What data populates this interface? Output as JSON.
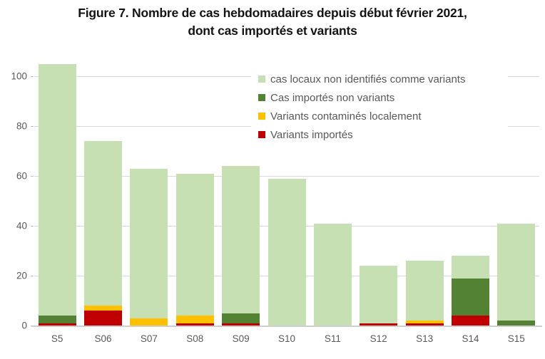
{
  "title": {
    "line1": "Figure 7. Nombre de cas hebdomadaires depuis début février 2021,",
    "line2": "dont cas importés et variants"
  },
  "chart_data": {
    "type": "bar",
    "stacked": true,
    "title": "Figure 7. Nombre de cas hebdomadaires depuis début février 2021, dont cas importés et variants",
    "categories": [
      "S5",
      "S06",
      "S07",
      "S08",
      "S09",
      "S10",
      "S11",
      "S12",
      "S13",
      "S14",
      "S15"
    ],
    "series": [
      {
        "name": "Variants importés",
        "color": "#c00000",
        "values": [
          1,
          6,
          0,
          1,
          1,
          0,
          0,
          1,
          1,
          4,
          0
        ]
      },
      {
        "name": "Variants contaminés localement",
        "color": "#ffc000",
        "values": [
          0,
          2,
          3,
          3,
          0,
          0,
          0,
          0,
          1,
          0,
          0
        ]
      },
      {
        "name": "Cas importés non variants",
        "color": "#548235",
        "values": [
          3,
          0,
          0,
          0,
          4,
          0,
          0,
          0,
          0,
          15,
          2
        ]
      },
      {
        "name": "cas locaux non identifiés comme variants",
        "color": "#c6e0b4",
        "values": [
          101,
          66,
          60,
          57,
          59,
          59,
          41,
          23,
          24,
          9,
          39
        ]
      }
    ],
    "totals": [
      105,
      74,
      63,
      61,
      64,
      59,
      41,
      24,
      26,
      28,
      41
    ],
    "legend": [
      "cas locaux non identifiés comme variants",
      "Cas importés non variants",
      "Variants contaminés localement",
      "Variants importés"
    ],
    "legend_position": "inside-top-right",
    "xlabel": "",
    "ylabel": "",
    "y_ticks": [
      0,
      20,
      40,
      60,
      80,
      100
    ],
    "ylim": [
      0,
      110
    ],
    "grid": true,
    "colors": {
      "grid": "#d9d9d9",
      "axis": "#cfcfcf",
      "tick_text": "#595959",
      "title_text": "#141414",
      "background": "#ffffff"
    }
  }
}
